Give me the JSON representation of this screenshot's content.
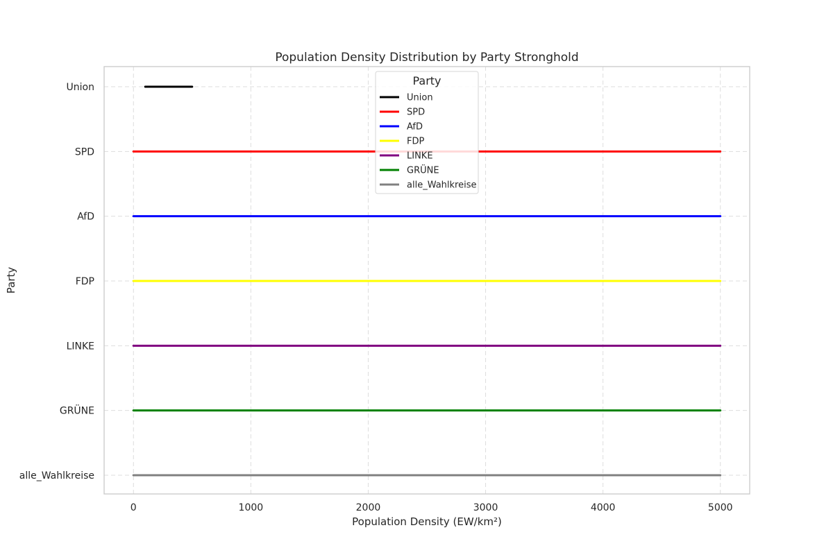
{
  "chart_data": {
    "type": "line",
    "title": "Population Density Distribution by Party Stronghold",
    "xlabel": "Population Density (EW/km²)",
    "ylabel": "Party",
    "xlim": [
      -250,
      5250
    ],
    "xticks": [
      0,
      1000,
      2000,
      3000,
      4000,
      5000
    ],
    "xtick_labels": [
      "0",
      "1000",
      "2000",
      "3000",
      "4000",
      "5000"
    ],
    "categories": [
      "Union",
      "SPD",
      "AfD",
      "FDP",
      "LINKE",
      "GRÜNE",
      "alle_Wahlkreise"
    ],
    "grid": true,
    "legend": {
      "title": "Party",
      "placement": "top-center"
    },
    "series": [
      {
        "name": "Union",
        "color": "#000000",
        "x": [
          100,
          500
        ],
        "y": "Union"
      },
      {
        "name": "SPD",
        "color": "#ff0000",
        "x": [
          0,
          5000
        ],
        "y": "SPD"
      },
      {
        "name": "AfD",
        "color": "#0000ff",
        "x": [
          0,
          5000
        ],
        "y": "AfD"
      },
      {
        "name": "FDP",
        "color": "#ffff00",
        "x": [
          0,
          5000
        ],
        "y": "FDP"
      },
      {
        "name": "LINKE",
        "color": "#800080",
        "x": [
          0,
          5000
        ],
        "y": "LINKE"
      },
      {
        "name": "GRÜNE",
        "color": "#008000",
        "x": [
          0,
          5000
        ],
        "y": "GRÜNE"
      },
      {
        "name": "alle_Wahlkreise",
        "color": "#808080",
        "x": [
          0,
          5000
        ],
        "y": "alle_Wahlkreise"
      }
    ]
  }
}
